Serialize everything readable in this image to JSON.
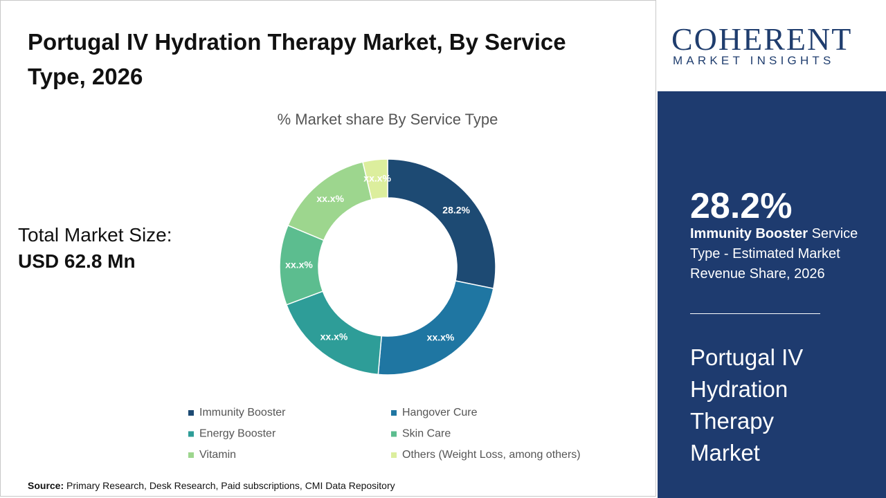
{
  "header": {
    "title": "Portugal IV Hydration Therapy Market, By Service Type, 2026"
  },
  "market_size": {
    "label": "Total Market Size:",
    "value": "USD 62.8 Mn"
  },
  "logo": {
    "brand": "COHERENT",
    "tagline": "MARKET INSIGHTS"
  },
  "highlight": {
    "value": "28.2%",
    "segment": "Immunity Booster",
    "description": "Service Type - Estimated Market Revenue Share, 2026",
    "market": "Portugal IV Hydration Therapy Market"
  },
  "source": {
    "label": "Source:",
    "text": "Primary Research, Desk Research, Paid subscriptions, CMI Data Repository"
  },
  "chart_data": {
    "type": "donut",
    "title": "% Market share By Service Type",
    "categories": [
      "Immunity Booster",
      "Hangover Cure",
      "Energy Booster",
      "Skin Care",
      "Vitamin",
      "Others (Weight Loss, among others)"
    ],
    "values": [
      28.2,
      23.2,
      17.9,
      12.0,
      15.0,
      3.7
    ],
    "value_labels": [
      "28.2%",
      "xx.x%",
      "xx.x%",
      "xx.x%",
      "xx.x%",
      "xx.x%"
    ],
    "colors": [
      "#1d4a73",
      "#1f76a2",
      "#2e9d98",
      "#5cbd8f",
      "#9dd68e",
      "#dcee9d"
    ],
    "legend": "bottom"
  }
}
